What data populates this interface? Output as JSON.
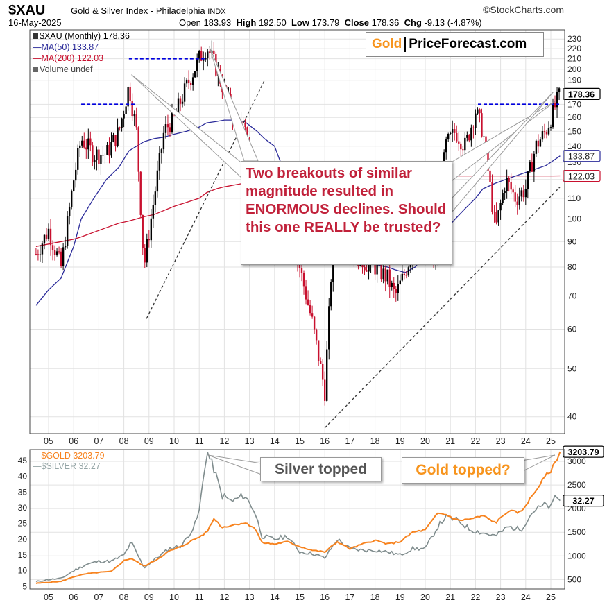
{
  "header": {
    "symbol": "$XAU",
    "description": "Gold & Silver Index - Philadelphia",
    "exchange": "INDX",
    "source": "©StockCharts.com",
    "date": "16-May-2025",
    "open_label": "Open",
    "open": "183.93",
    "high_label": "High",
    "high": "192.50",
    "low_label": "Low",
    "low": "173.79",
    "close_label": "Close",
    "close": "178.36",
    "chg_label": "Chg",
    "chg": "-9.13 (-4.87%)"
  },
  "legend_top": {
    "main": "$XAU (Monthly) 178.36",
    "ma50": "MA(50) 133.87",
    "ma200": "MA(200) 122.03",
    "volume": "Volume undef"
  },
  "legend_bottom": {
    "gold": "$GOLD 3203.79",
    "silver": "$SILVER 32.27"
  },
  "logo": {
    "part1": "Gold",
    "part2": "PriceForecast.com"
  },
  "annotations": {
    "main": "Two breakouts of similar magnitude resulted in ENORMOUS declines. Should this one REALLY be trusted?",
    "silver": "Silver topped",
    "gold": "Gold topped?"
  },
  "colors": {
    "up": "#000000",
    "down": "#c8102e",
    "ma50": "#2b2b9a",
    "ma200": "#c8102e",
    "gold": "#f7831f",
    "silver": "#7f8c8d",
    "resistance": "#0000dd",
    "annotation": "#c1213a",
    "logo_accent": "#f7941d"
  },
  "chart_data": [
    {
      "type": "line",
      "title": "$XAU Gold & Silver Index - Philadelphia",
      "scale": "log",
      "ylim": [
        37,
        240
      ],
      "yticks": [
        40,
        50,
        60,
        70,
        80,
        90,
        100,
        110,
        120,
        130,
        140,
        150,
        160,
        170,
        180,
        190,
        200,
        210,
        220,
        230
      ],
      "xticks": [
        "05",
        "06",
        "07",
        "08",
        "09",
        "10",
        "11",
        "12",
        "13",
        "14",
        "15",
        "16",
        "17",
        "18",
        "19",
        "20",
        "21",
        "22",
        "23",
        "24",
        "25"
      ],
      "x": [
        2004.5,
        2005.0,
        2005.5,
        2006.0,
        2006.3,
        2006.8,
        2007.3,
        2007.8,
        2008.2,
        2008.5,
        2008.8,
        2009.2,
        2009.6,
        2010.0,
        2010.5,
        2011.0,
        2011.3,
        2011.7,
        2012.0,
        2012.4,
        2012.8,
        2013.3,
        2013.6,
        2014.0,
        2014.5,
        2015.0,
        2015.5,
        2016.0,
        2016.3,
        2016.6,
        2017.0,
        2017.5,
        2018.0,
        2018.5,
        2018.8,
        2019.2,
        2019.6,
        2020.0,
        2020.4,
        2020.8,
        2021.2,
        2021.6,
        2022.0,
        2022.3,
        2022.8,
        2023.2,
        2023.6,
        2024.0,
        2024.4,
        2024.8,
        2025.1,
        2025.37
      ],
      "series": [
        {
          "name": "$XAU (Monthly)",
          "values": [
            85,
            95,
            80,
            120,
            145,
            135,
            135,
            150,
            185,
            150,
            80,
            110,
            150,
            160,
            185,
            210,
            222,
            200,
            180,
            160,
            150,
            120,
            100,
            90,
            95,
            80,
            62,
            45,
            85,
            95,
            88,
            82,
            80,
            76,
            70,
            78,
            90,
            100,
            80,
            140,
            150,
            140,
            165,
            150,
            95,
            120,
            110,
            115,
            140,
            150,
            165,
            178.36
          ]
        },
        {
          "name": "MA(50)",
          "values": [
            67,
            72,
            76,
            88,
            100,
            110,
            120,
            127,
            137,
            140,
            143,
            145,
            146,
            148,
            150,
            153,
            156,
            157,
            158,
            158,
            157,
            150,
            145,
            140,
            120,
            110,
            100,
            88,
            85,
            83,
            82,
            81,
            81,
            80,
            79,
            78,
            80,
            85,
            90,
            95,
            100,
            105,
            110,
            115,
            118,
            120,
            122,
            124,
            126,
            128,
            131,
            133.87
          ]
        },
        {
          "name": "MA(200)",
          "values": [
            88,
            89,
            90,
            91,
            92,
            94,
            96,
            98,
            99,
            100,
            101,
            102,
            104,
            106,
            108,
            110,
            113,
            115,
            116,
            117,
            118,
            119,
            119,
            120,
            121,
            121,
            120,
            121,
            121,
            121,
            121,
            121,
            121,
            121,
            121,
            121,
            121,
            121,
            121,
            121,
            122,
            122,
            122,
            122,
            122,
            122,
            122,
            122,
            122,
            122,
            122,
            122.03
          ]
        }
      ],
      "resistance_levels": [
        {
          "value": 170,
          "from": 2006.3,
          "to": 2008.5
        },
        {
          "value": 210,
          "from": 2008.2,
          "to": 2011.3
        },
        {
          "value": 170,
          "from": 2022.1,
          "to": 2025.37
        }
      ],
      "trendlines": [
        {
          "from": [
            2008.9,
            63
          ],
          "to": [
            2013.6,
            190
          ]
        },
        {
          "from": [
            2016.0,
            38
          ],
          "to": [
            2025.37,
            116
          ]
        }
      ],
      "price_labels": [
        "178.36",
        "133.87",
        "122.03"
      ]
    },
    {
      "type": "line",
      "x": [
        2004.5,
        2005.0,
        2005.5,
        2006.0,
        2006.5,
        2007.0,
        2007.5,
        2008.0,
        2008.3,
        2008.8,
        2009.3,
        2009.8,
        2010.3,
        2010.8,
        2011.0,
        2011.3,
        2011.6,
        2011.9,
        2012.3,
        2012.8,
        2013.2,
        2013.5,
        2014.0,
        2014.5,
        2015.0,
        2015.5,
        2016.0,
        2016.5,
        2017.0,
        2017.5,
        2018.0,
        2018.5,
        2019.0,
        2019.5,
        2020.0,
        2020.5,
        2020.8,
        2021.3,
        2021.8,
        2022.3,
        2022.8,
        2023.3,
        2023.8,
        2024.3,
        2024.8,
        2025.0,
        2025.2,
        2025.37
      ],
      "series": [
        {
          "name": "$GOLD",
          "axis": "right",
          "ylim": [
            300,
            3250
          ],
          "values": [
            420,
            440,
            460,
            560,
            620,
            650,
            670,
            900,
            950,
            780,
            920,
            1100,
            1200,
            1350,
            1400,
            1500,
            1800,
            1600,
            1650,
            1700,
            1600,
            1280,
            1250,
            1300,
            1200,
            1120,
            1080,
            1300,
            1150,
            1250,
            1330,
            1250,
            1300,
            1500,
            1550,
            1900,
            1880,
            1750,
            1780,
            1850,
            1700,
            1950,
            1920,
            2300,
            2700,
            2800,
            3000,
            3203.79
          ]
        },
        {
          "name": "$SILVER",
          "axis": "left",
          "ylim": [
            4.2,
            48.5
          ],
          "values": [
            6.5,
            7.2,
            7.5,
            10,
            12,
            13,
            13,
            15,
            19,
            11,
            14,
            17,
            18,
            24,
            29,
            48,
            42,
            34,
            32,
            34,
            29,
            21,
            20,
            21,
            16,
            15.5,
            14,
            20,
            17,
            16.5,
            16.5,
            16,
            15,
            17,
            17,
            24,
            27,
            26,
            23,
            22,
            21,
            24,
            23,
            29,
            31,
            30,
            34,
            32.27
          ]
        }
      ],
      "left_ticks": [
        5,
        10,
        15,
        20,
        25,
        30,
        35,
        40,
        45
      ],
      "right_ticks": [
        500,
        1000,
        1500,
        2000,
        2500,
        3000
      ],
      "xticks": [
        "05",
        "06",
        "07",
        "08",
        "09",
        "10",
        "11",
        "12",
        "13",
        "14",
        "15",
        "16",
        "17",
        "18",
        "19",
        "20",
        "21",
        "22",
        "23",
        "24",
        "25"
      ],
      "price_labels": [
        "3203.79",
        "32.27"
      ]
    }
  ]
}
